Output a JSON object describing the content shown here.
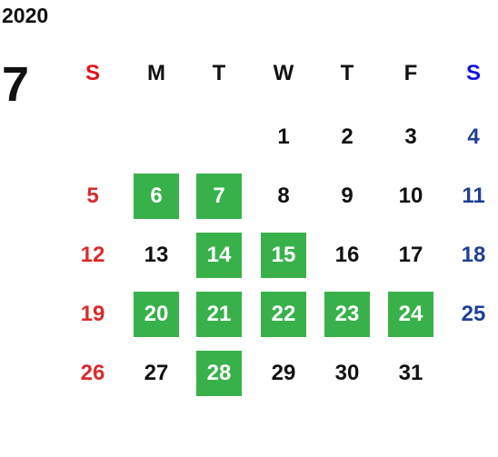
{
  "calendar": {
    "year": "2020",
    "month": "7",
    "weekdays": [
      "S",
      "M",
      "T",
      "W",
      "T",
      "F",
      "S"
    ],
    "colors": {
      "sunday_header": "#e8101a",
      "saturday_header": "#1010e0",
      "sunday": "#d92b2b",
      "saturday": "#1f3f93",
      "weekday": "#111111",
      "highlight": "#39b14a",
      "highlight_text": "#ffffff"
    },
    "weeks": [
      [
        null,
        null,
        null,
        {
          "day": "1",
          "highlight": false
        },
        {
          "day": "2",
          "highlight": false
        },
        {
          "day": "3",
          "highlight": false
        },
        {
          "day": "4",
          "highlight": false
        }
      ],
      [
        {
          "day": "5",
          "highlight": false
        },
        {
          "day": "6",
          "highlight": true
        },
        {
          "day": "7",
          "highlight": true
        },
        {
          "day": "8",
          "highlight": false
        },
        {
          "day": "9",
          "highlight": false
        },
        {
          "day": "10",
          "highlight": false
        },
        {
          "day": "11",
          "highlight": false
        }
      ],
      [
        {
          "day": "12",
          "highlight": false
        },
        {
          "day": "13",
          "highlight": false
        },
        {
          "day": "14",
          "highlight": true
        },
        {
          "day": "15",
          "highlight": true
        },
        {
          "day": "16",
          "highlight": false
        },
        {
          "day": "17",
          "highlight": false
        },
        {
          "day": "18",
          "highlight": false
        }
      ],
      [
        {
          "day": "19",
          "highlight": false
        },
        {
          "day": "20",
          "highlight": true
        },
        {
          "day": "21",
          "highlight": true
        },
        {
          "day": "22",
          "highlight": true
        },
        {
          "day": "23",
          "highlight": true
        },
        {
          "day": "24",
          "highlight": true
        },
        {
          "day": "25",
          "highlight": false
        }
      ],
      [
        {
          "day": "26",
          "highlight": false
        },
        {
          "day": "27",
          "highlight": false
        },
        {
          "day": "28",
          "highlight": true
        },
        {
          "day": "29",
          "highlight": false
        },
        {
          "day": "30",
          "highlight": false
        },
        {
          "day": "31",
          "highlight": false
        },
        null
      ]
    ]
  }
}
